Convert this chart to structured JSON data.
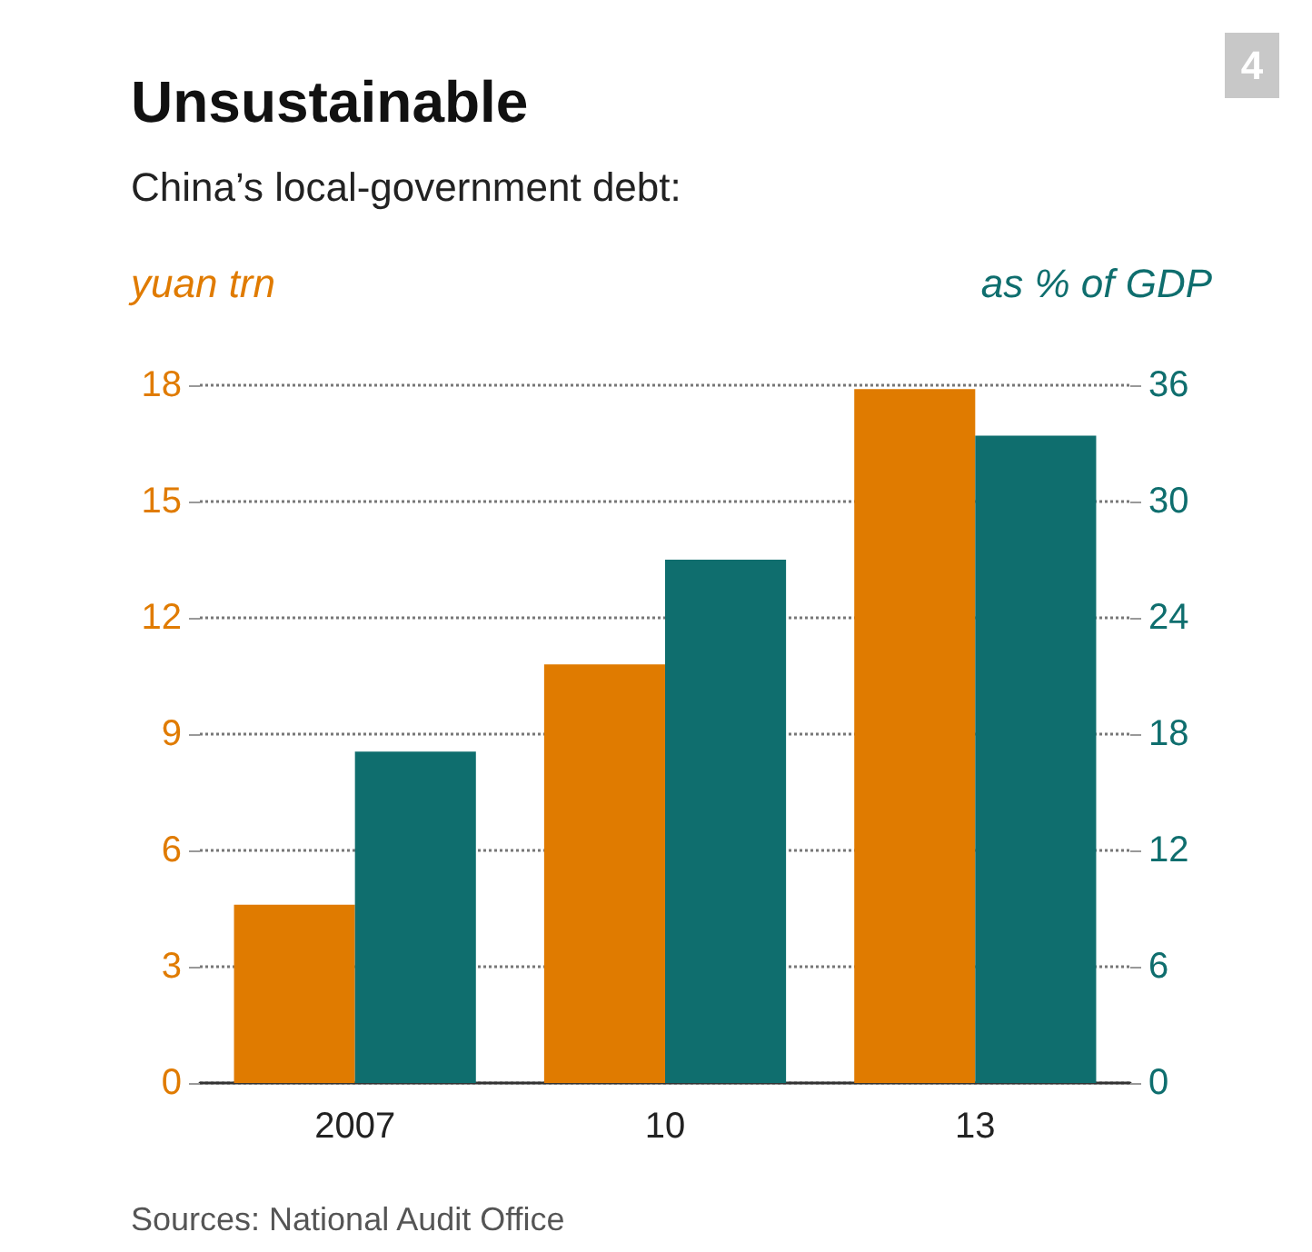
{
  "chart_data": {
    "type": "bar",
    "title": "Unsustainable",
    "subtitle": "China’s local-government debt:",
    "ylabel": "yuan trn",
    "y2label": "as % of GDP",
    "categories": [
      "2007",
      "10",
      "13"
    ],
    "series": [
      {
        "color": "#e07b00",
        "values": [
          4.6,
          10.8,
          17.9
        ]
      },
      {
        "color": "#0f6e6e",
        "values": [
          17.1,
          27,
          33.4
        ],
        "axis": "y2"
      }
    ],
    "ylim": [
      0,
      18
    ],
    "yticks": [
      0,
      3,
      6,
      9,
      12,
      15,
      18
    ],
    "y2lim": [
      0,
      36
    ],
    "y2ticks": [
      0,
      6,
      12,
      18,
      24,
      30,
      36
    ],
    "grid": "y",
    "line_style": "dotted",
    "annotations": [
      "4",
      "Sources: National Audit Office"
    ]
  }
}
